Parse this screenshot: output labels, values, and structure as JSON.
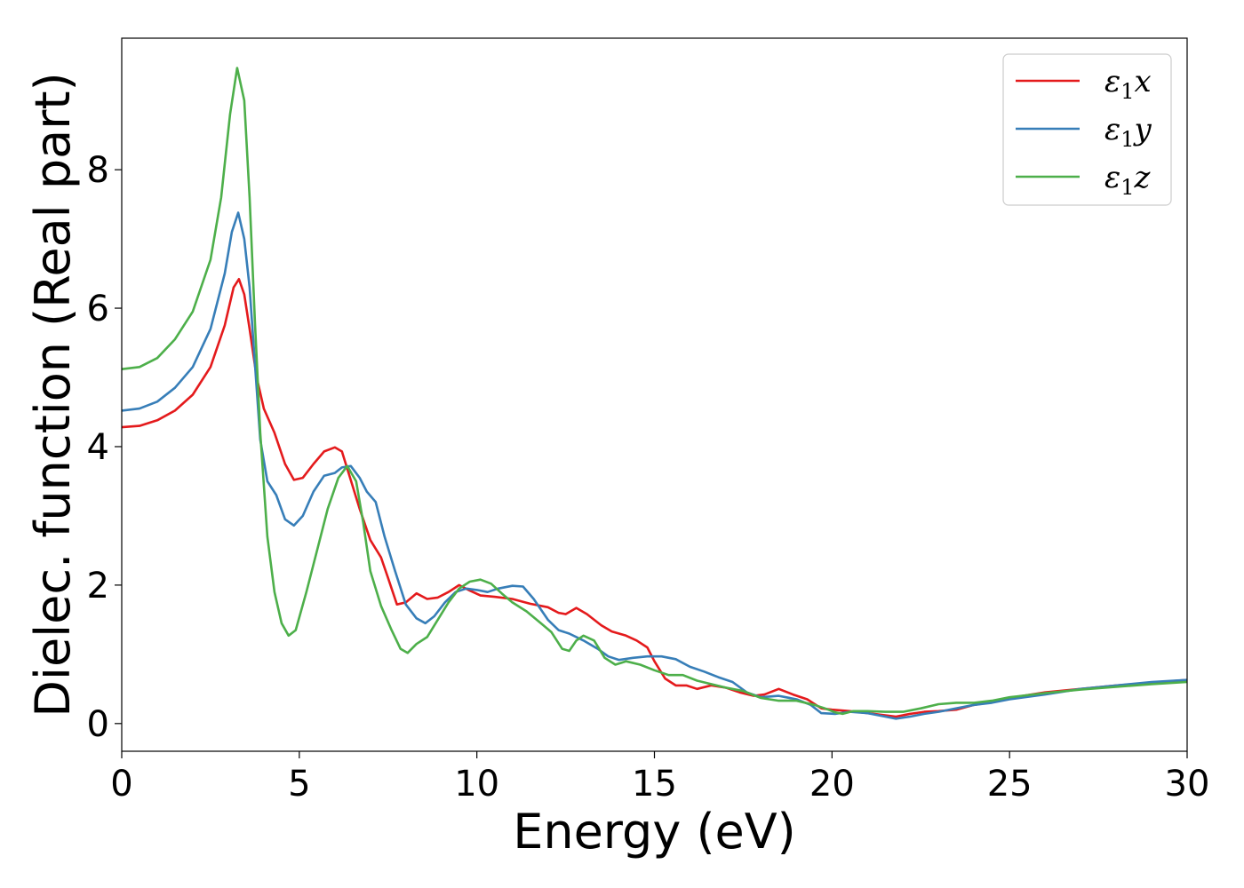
{
  "chart_data": {
    "type": "line",
    "title": "",
    "xlabel": "Energy (eV)",
    "ylabel": "Dielec. function (Real part)",
    "xlim": [
      0,
      30
    ],
    "ylim": [
      -0.4,
      9.9
    ],
    "x_ticks": [
      0,
      5,
      10,
      15,
      20,
      25,
      30
    ],
    "y_ticks": [
      0,
      2,
      4,
      6,
      8
    ],
    "grid": false,
    "legend_position": "top-right",
    "series": [
      {
        "name": "ε1x",
        "legend": {
          "symbol": "ε",
          "sub": "1",
          "axis": "x"
        },
        "color": "#e41a1c",
        "points": [
          [
            0,
            4.28
          ],
          [
            0.5,
            4.3
          ],
          [
            1,
            4.38
          ],
          [
            1.5,
            4.52
          ],
          [
            2,
            4.75
          ],
          [
            2.5,
            5.15
          ],
          [
            2.9,
            5.75
          ],
          [
            3.15,
            6.3
          ],
          [
            3.3,
            6.42
          ],
          [
            3.45,
            6.2
          ],
          [
            3.6,
            5.7
          ],
          [
            3.8,
            5.0
          ],
          [
            4.0,
            4.55
          ],
          [
            4.3,
            4.2
          ],
          [
            4.6,
            3.75
          ],
          [
            4.85,
            3.52
          ],
          [
            5.1,
            3.55
          ],
          [
            5.4,
            3.75
          ],
          [
            5.7,
            3.93
          ],
          [
            6.0,
            3.99
          ],
          [
            6.2,
            3.93
          ],
          [
            6.4,
            3.6
          ],
          [
            6.7,
            3.1
          ],
          [
            7.0,
            2.65
          ],
          [
            7.3,
            2.4
          ],
          [
            7.5,
            2.1
          ],
          [
            7.75,
            1.72
          ],
          [
            8.0,
            1.75
          ],
          [
            8.3,
            1.88
          ],
          [
            8.6,
            1.8
          ],
          [
            8.9,
            1.82
          ],
          [
            9.2,
            1.9
          ],
          [
            9.5,
            2.0
          ],
          [
            9.8,
            1.92
          ],
          [
            10.1,
            1.85
          ],
          [
            10.5,
            1.83
          ],
          [
            11.0,
            1.8
          ],
          [
            11.5,
            1.73
          ],
          [
            12.0,
            1.68
          ],
          [
            12.3,
            1.6
          ],
          [
            12.5,
            1.58
          ],
          [
            12.8,
            1.67
          ],
          [
            13.1,
            1.58
          ],
          [
            13.5,
            1.42
          ],
          [
            13.8,
            1.33
          ],
          [
            14.2,
            1.27
          ],
          [
            14.5,
            1.2
          ],
          [
            14.8,
            1.1
          ],
          [
            15.0,
            0.9
          ],
          [
            15.3,
            0.65
          ],
          [
            15.6,
            0.55
          ],
          [
            15.9,
            0.55
          ],
          [
            16.2,
            0.5
          ],
          [
            16.6,
            0.55
          ],
          [
            17.0,
            0.52
          ],
          [
            17.4,
            0.45
          ],
          [
            17.8,
            0.4
          ],
          [
            18.1,
            0.42
          ],
          [
            18.5,
            0.5
          ],
          [
            18.9,
            0.42
          ],
          [
            19.3,
            0.35
          ],
          [
            19.7,
            0.22
          ],
          [
            20.0,
            0.2
          ],
          [
            20.5,
            0.18
          ],
          [
            21.0,
            0.15
          ],
          [
            21.5,
            0.12
          ],
          [
            21.8,
            0.1
          ],
          [
            22.2,
            0.14
          ],
          [
            22.6,
            0.17
          ],
          [
            23.0,
            0.18
          ],
          [
            23.5,
            0.2
          ],
          [
            24,
            0.27
          ],
          [
            24.5,
            0.31
          ],
          [
            25,
            0.37
          ],
          [
            26,
            0.45
          ],
          [
            27,
            0.5
          ],
          [
            28,
            0.55
          ],
          [
            29,
            0.59
          ],
          [
            30,
            0.63
          ]
        ]
      },
      {
        "name": "ε1y",
        "legend": {
          "symbol": "ε",
          "sub": "1",
          "axis": "y"
        },
        "color": "#377eb8",
        "points": [
          [
            0,
            4.52
          ],
          [
            0.5,
            4.55
          ],
          [
            1,
            4.65
          ],
          [
            1.5,
            4.85
          ],
          [
            2,
            5.15
          ],
          [
            2.5,
            5.7
          ],
          [
            2.9,
            6.5
          ],
          [
            3.1,
            7.1
          ],
          [
            3.28,
            7.38
          ],
          [
            3.45,
            7.0
          ],
          [
            3.6,
            6.3
          ],
          [
            3.75,
            5.2
          ],
          [
            3.9,
            4.1
          ],
          [
            4.1,
            3.5
          ],
          [
            4.35,
            3.3
          ],
          [
            4.6,
            2.95
          ],
          [
            4.85,
            2.86
          ],
          [
            5.1,
            3.0
          ],
          [
            5.4,
            3.35
          ],
          [
            5.7,
            3.58
          ],
          [
            6.0,
            3.62
          ],
          [
            6.2,
            3.7
          ],
          [
            6.45,
            3.72
          ],
          [
            6.7,
            3.55
          ],
          [
            6.9,
            3.35
          ],
          [
            7.15,
            3.2
          ],
          [
            7.4,
            2.7
          ],
          [
            7.7,
            2.2
          ],
          [
            8.0,
            1.72
          ],
          [
            8.3,
            1.52
          ],
          [
            8.55,
            1.45
          ],
          [
            8.8,
            1.55
          ],
          [
            9.1,
            1.75
          ],
          [
            9.4,
            1.9
          ],
          [
            9.7,
            1.95
          ],
          [
            10.0,
            1.93
          ],
          [
            10.3,
            1.9
          ],
          [
            10.6,
            1.95
          ],
          [
            11.0,
            1.99
          ],
          [
            11.3,
            1.98
          ],
          [
            11.6,
            1.8
          ],
          [
            12.0,
            1.5
          ],
          [
            12.3,
            1.35
          ],
          [
            12.6,
            1.3
          ],
          [
            13.0,
            1.2
          ],
          [
            13.4,
            1.08
          ],
          [
            13.7,
            0.97
          ],
          [
            14.0,
            0.92
          ],
          [
            14.4,
            0.95
          ],
          [
            14.8,
            0.97
          ],
          [
            15.2,
            0.97
          ],
          [
            15.6,
            0.93
          ],
          [
            16.0,
            0.82
          ],
          [
            16.4,
            0.75
          ],
          [
            16.8,
            0.67
          ],
          [
            17.2,
            0.6
          ],
          [
            17.6,
            0.45
          ],
          [
            18.0,
            0.38
          ],
          [
            18.5,
            0.4
          ],
          [
            19.0,
            0.35
          ],
          [
            19.4,
            0.27
          ],
          [
            19.7,
            0.15
          ],
          [
            20.1,
            0.14
          ],
          [
            20.5,
            0.17
          ],
          [
            21.0,
            0.15
          ],
          [
            21.5,
            0.1
          ],
          [
            21.8,
            0.07
          ],
          [
            22.2,
            0.1
          ],
          [
            22.6,
            0.14
          ],
          [
            23.0,
            0.17
          ],
          [
            23.5,
            0.22
          ],
          [
            24,
            0.27
          ],
          [
            24.5,
            0.3
          ],
          [
            25,
            0.35
          ],
          [
            26,
            0.42
          ],
          [
            27,
            0.5
          ],
          [
            28,
            0.55
          ],
          [
            29,
            0.6
          ],
          [
            30,
            0.63
          ]
        ]
      },
      {
        "name": "ε1z",
        "legend": {
          "symbol": "ε",
          "sub": "1",
          "axis": "z"
        },
        "color": "#4daf4a",
        "points": [
          [
            0,
            5.12
          ],
          [
            0.5,
            5.15
          ],
          [
            1,
            5.28
          ],
          [
            1.5,
            5.55
          ],
          [
            2,
            5.95
          ],
          [
            2.5,
            6.7
          ],
          [
            2.8,
            7.6
          ],
          [
            3.05,
            8.8
          ],
          [
            3.25,
            9.47
          ],
          [
            3.45,
            9.0
          ],
          [
            3.6,
            7.6
          ],
          [
            3.75,
            5.8
          ],
          [
            3.9,
            4.2
          ],
          [
            4.1,
            2.7
          ],
          [
            4.3,
            1.9
          ],
          [
            4.5,
            1.45
          ],
          [
            4.7,
            1.27
          ],
          [
            4.9,
            1.35
          ],
          [
            5.2,
            1.9
          ],
          [
            5.5,
            2.5
          ],
          [
            5.8,
            3.1
          ],
          [
            6.1,
            3.55
          ],
          [
            6.35,
            3.72
          ],
          [
            6.6,
            3.5
          ],
          [
            6.8,
            2.9
          ],
          [
            7.0,
            2.2
          ],
          [
            7.3,
            1.7
          ],
          [
            7.6,
            1.35
          ],
          [
            7.85,
            1.08
          ],
          [
            8.05,
            1.02
          ],
          [
            8.3,
            1.15
          ],
          [
            8.6,
            1.25
          ],
          [
            8.9,
            1.5
          ],
          [
            9.2,
            1.75
          ],
          [
            9.5,
            1.95
          ],
          [
            9.8,
            2.05
          ],
          [
            10.1,
            2.08
          ],
          [
            10.4,
            2.02
          ],
          [
            10.7,
            1.88
          ],
          [
            11.0,
            1.75
          ],
          [
            11.4,
            1.62
          ],
          [
            11.8,
            1.45
          ],
          [
            12.1,
            1.32
          ],
          [
            12.4,
            1.08
          ],
          [
            12.6,
            1.05
          ],
          [
            12.8,
            1.2
          ],
          [
            13.0,
            1.27
          ],
          [
            13.3,
            1.2
          ],
          [
            13.6,
            0.95
          ],
          [
            13.9,
            0.85
          ],
          [
            14.2,
            0.9
          ],
          [
            14.6,
            0.85
          ],
          [
            15.0,
            0.77
          ],
          [
            15.4,
            0.7
          ],
          [
            15.8,
            0.7
          ],
          [
            16.2,
            0.62
          ],
          [
            16.6,
            0.57
          ],
          [
            17.0,
            0.52
          ],
          [
            17.5,
            0.47
          ],
          [
            18.0,
            0.37
          ],
          [
            18.5,
            0.33
          ],
          [
            19.0,
            0.33
          ],
          [
            19.5,
            0.27
          ],
          [
            19.8,
            0.22
          ],
          [
            20.1,
            0.16
          ],
          [
            20.3,
            0.14
          ],
          [
            20.6,
            0.18
          ],
          [
            21.0,
            0.18
          ],
          [
            21.5,
            0.17
          ],
          [
            22.0,
            0.17
          ],
          [
            22.5,
            0.22
          ],
          [
            23.0,
            0.28
          ],
          [
            23.5,
            0.3
          ],
          [
            24,
            0.3
          ],
          [
            24.5,
            0.33
          ],
          [
            25,
            0.38
          ],
          [
            26,
            0.44
          ],
          [
            27,
            0.49
          ],
          [
            28,
            0.53
          ],
          [
            29,
            0.57
          ],
          [
            30,
            0.6
          ]
        ]
      }
    ]
  }
}
